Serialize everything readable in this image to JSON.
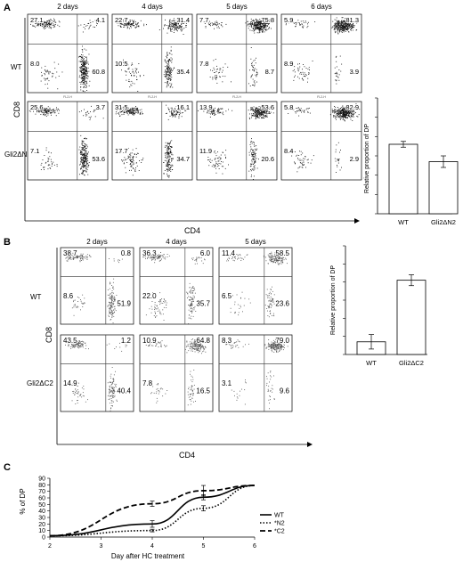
{
  "panel_a": {
    "letter": "A",
    "days": [
      "2 days",
      "4 days",
      "5 days",
      "6 days"
    ],
    "rows": [
      "WT",
      "Gli2ΔN2"
    ],
    "yaxis": "CD8",
    "xaxis": "CD4",
    "minor_axis": "FL2-H",
    "quadrants": [
      [
        [
          "27.1",
          "4.1",
          "8.0",
          "60.8"
        ],
        [
          "22.7",
          "31.4",
          "10.5",
          "35.4"
        ],
        [
          "7.7",
          "75.8",
          "7.8",
          "8.7"
        ],
        [
          "5.9",
          "81.3",
          "8.9",
          "3.9"
        ]
      ],
      [
        [
          "25.6",
          "3.7",
          "7.1",
          "53.6"
        ],
        [
          "31.5",
          "16.1",
          "17.7",
          "34.7"
        ],
        [
          "13.9",
          "53.6",
          "11.9",
          "20.6"
        ],
        [
          "5.8",
          "82.9",
          "8.4",
          "2.9"
        ]
      ]
    ],
    "bar": {
      "ylabel": "Relative proportion of DP",
      "categories": [
        "WT",
        "Gli2ΔN2"
      ],
      "values": [
        0.72,
        0.54
      ],
      "errors": [
        0.03,
        0.06
      ],
      "ylim": [
        0,
        1.2
      ]
    }
  },
  "panel_b": {
    "letter": "B",
    "days": [
      "2  days",
      "4 days",
      "5 days"
    ],
    "rows": [
      "WT",
      "Gli2ΔC2"
    ],
    "yaxis": "CD8",
    "xaxis": "CD4",
    "quadrants": [
      [
        [
          "38.7",
          "0.8",
          "8.6",
          "51.9"
        ],
        [
          "36.3",
          "6.0",
          "22.0",
          "35.7"
        ],
        [
          "11.4",
          "58.5",
          "6.5",
          "23.6"
        ]
      ],
      [
        [
          "43.5",
          "1.2",
          "14.9",
          "40.4"
        ],
        [
          "10.9",
          "64.8",
          "7.8",
          "16.5"
        ],
        [
          "8.3",
          "79.0",
          "3.1",
          "9.6"
        ]
      ]
    ],
    "bar": {
      "ylabel": "Relative proportion of DP",
      "categories": [
        "WT",
        "Gli2ΔC2"
      ],
      "values": [
        0.14,
        0.82
      ],
      "errors": [
        0.08,
        0.06
      ],
      "ylim": [
        0,
        1.2
      ]
    }
  },
  "panel_c": {
    "letter": "C",
    "chart_data": {
      "type": "line",
      "xlabel": "Day after HC treatment",
      "ylabel": "% of DP",
      "xlim": [
        2,
        6
      ],
      "ylim": [
        0,
        90
      ],
      "xticks": [
        2,
        3,
        4,
        5,
        6
      ],
      "yticks": [
        0,
        10,
        20,
        30,
        40,
        50,
        60,
        70,
        80,
        90
      ],
      "series": [
        {
          "name": "WT",
          "style": "solid",
          "x": [
            2,
            4,
            5,
            6
          ],
          "y": [
            2,
            20,
            61,
            79
          ],
          "err": [
            0,
            5,
            4,
            0
          ]
        },
        {
          "name": "*N2",
          "style": "dotted",
          "x": [
            2,
            4,
            5,
            6
          ],
          "y": [
            2,
            10,
            44,
            79
          ],
          "err": [
            0,
            2,
            4,
            0
          ]
        },
        {
          "name": "*C2",
          "style": "dashed",
          "x": [
            2,
            4,
            5,
            6
          ],
          "y": [
            2,
            51,
            71,
            79
          ],
          "err": [
            0,
            4,
            8,
            0
          ]
        }
      ]
    }
  }
}
